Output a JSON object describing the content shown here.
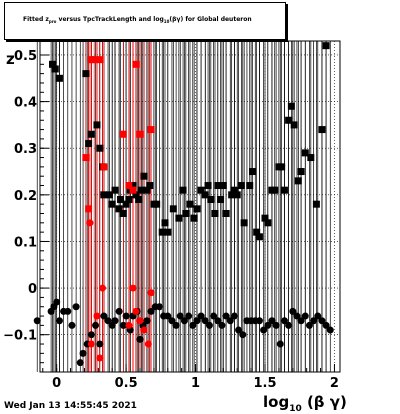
{
  "title": {
    "prefix": "Fitted  z",
    "sub1": "pro",
    "middle": "  versus TpcTrackLength and log",
    "sub2": "10",
    "suffix": "(βγ) for Global deuteron"
  },
  "axes": {
    "ylabel": "z",
    "xlabel_prefix": "log",
    "xlabel_sub": "10",
    "xlabel_suffix": "(β γ)"
  },
  "timestamp": "Wed Jan 13 14:55:45 2021",
  "chart_data": {
    "type": "scatter",
    "xlim": [
      -0.12,
      2.04
    ],
    "ylim": [
      -0.18,
      0.53
    ],
    "xticks": [
      {
        "v": 0,
        "label": "0"
      },
      {
        "v": 0.5,
        "label": "0.5"
      },
      {
        "v": 1,
        "label": "1"
      },
      {
        "v": 1.5,
        "label": "1.5"
      },
      {
        "v": 2,
        "label": "2"
      }
    ],
    "yticks": [
      {
        "v": -0.1,
        "label": "−0.1"
      },
      {
        "v": 0,
        "label": "0"
      },
      {
        "v": 0.1,
        "label": "0.1"
      },
      {
        "v": 0.2,
        "label": "0.2"
      },
      {
        "v": 0.3,
        "label": "0.3"
      },
      {
        "v": 0.4,
        "label": "0.4"
      },
      {
        "v": 0.5,
        "label": "0.5"
      }
    ],
    "grid": true,
    "series": [
      {
        "color": "#000000",
        "marker": "square",
        "points": [
          [
            -0.03,
            0.48
          ],
          [
            -0.01,
            0.47
          ],
          [
            0.02,
            0.45
          ],
          [
            0.21,
            0.46
          ],
          [
            0.23,
            0.31
          ],
          [
            0.25,
            0.33
          ],
          [
            0.29,
            0.35
          ],
          [
            0.31,
            0.3
          ],
          [
            0.33,
            0.26
          ],
          [
            0.34,
            0.2
          ],
          [
            0.38,
            0.2
          ],
          [
            0.4,
            0.18
          ],
          [
            0.42,
            0.21
          ],
          [
            0.45,
            0.17
          ],
          [
            0.46,
            0.19
          ],
          [
            0.48,
            0.16
          ],
          [
            0.5,
            0.18
          ],
          [
            0.52,
            0.19
          ],
          [
            0.53,
            0.21
          ],
          [
            0.55,
            0.22
          ],
          [
            0.57,
            0.2
          ],
          [
            0.59,
            0.19
          ],
          [
            0.61,
            0.21
          ],
          [
            0.63,
            0.24
          ],
          [
            0.65,
            0.21
          ],
          [
            0.67,
            0.22
          ],
          [
            0.7,
            0.18
          ],
          [
            0.72,
            0.18
          ],
          [
            0.76,
            0.12
          ],
          [
            0.78,
            0.14
          ],
          [
            0.8,
            0.12
          ],
          [
            0.84,
            0.17
          ],
          [
            0.88,
            0.15
          ],
          [
            0.91,
            0.21
          ],
          [
            0.93,
            0.16
          ],
          [
            0.96,
            0.18
          ],
          [
            0.99,
            0.15
          ],
          [
            1.01,
            0.17
          ],
          [
            1.04,
            0.21
          ],
          [
            1.07,
            0.2
          ],
          [
            1.09,
            0.22
          ],
          [
            1.11,
            0.19
          ],
          [
            1.14,
            0.16
          ],
          [
            1.16,
            0.22
          ],
          [
            1.18,
            0.19
          ],
          [
            1.2,
            0.22
          ],
          [
            1.22,
            0.16
          ],
          [
            1.26,
            0.2
          ],
          [
            1.28,
            0.21
          ],
          [
            1.3,
            0.2
          ],
          [
            1.33,
            0.22
          ],
          [
            1.35,
            0.14
          ],
          [
            1.39,
            0.22
          ],
          [
            1.41,
            0.25
          ],
          [
            1.44,
            0.12
          ],
          [
            1.46,
            0.11
          ],
          [
            1.5,
            0.15
          ],
          [
            1.52,
            0.14
          ],
          [
            1.55,
            0.21
          ],
          [
            1.57,
            0.21
          ],
          [
            1.6,
            0.26
          ],
          [
            1.62,
            0.26
          ],
          [
            1.64,
            0.21
          ],
          [
            1.67,
            0.36
          ],
          [
            1.69,
            0.39
          ],
          [
            1.71,
            0.35
          ],
          [
            1.74,
            0.23
          ],
          [
            1.76,
            0.25
          ],
          [
            1.79,
            0.29
          ],
          [
            1.83,
            0.28
          ],
          [
            1.87,
            0.18
          ],
          [
            1.91,
            0.34
          ],
          [
            1.94,
            0.52
          ]
        ]
      },
      {
        "color": "#000000",
        "marker": "circle",
        "points": [
          [
            -0.14,
            -0.07
          ],
          [
            -0.04,
            -0.05
          ],
          [
            -0.02,
            -0.04
          ],
          [
            0.0,
            -0.03
          ],
          [
            0.02,
            -0.07
          ],
          [
            0.05,
            -0.05
          ],
          [
            0.08,
            -0.05
          ],
          [
            0.11,
            -0.08
          ],
          [
            0.14,
            -0.04
          ],
          [
            0.17,
            -0.16
          ],
          [
            0.19,
            -0.14
          ],
          [
            0.22,
            -0.12
          ],
          [
            0.25,
            -0.1
          ],
          [
            0.28,
            -0.08
          ],
          [
            0.31,
            -0.12
          ],
          [
            0.34,
            -0.06
          ],
          [
            0.37,
            -0.07
          ],
          [
            0.4,
            -0.08
          ],
          [
            0.42,
            -0.07
          ],
          [
            0.45,
            -0.05
          ],
          [
            0.48,
            -0.08
          ],
          [
            0.5,
            -0.06
          ],
          [
            0.53,
            -0.09
          ],
          [
            0.55,
            -0.06
          ],
          [
            0.58,
            -0.05
          ],
          [
            0.6,
            -0.11
          ],
          [
            0.62,
            -0.08
          ],
          [
            0.65,
            -0.07
          ],
          [
            0.68,
            -0.05
          ],
          [
            0.71,
            -0.04
          ],
          [
            0.74,
            -0.04
          ],
          [
            0.77,
            -0.06
          ],
          [
            0.8,
            -0.06
          ],
          [
            0.83,
            -0.07
          ],
          [
            0.86,
            -0.08
          ],
          [
            0.89,
            -0.06
          ],
          [
            0.92,
            -0.07
          ],
          [
            0.95,
            -0.06
          ],
          [
            0.98,
            -0.08
          ],
          [
            1.01,
            -0.07
          ],
          [
            1.04,
            -0.06
          ],
          [
            1.07,
            -0.07
          ],
          [
            1.1,
            -0.08
          ],
          [
            1.13,
            -0.06
          ],
          [
            1.16,
            -0.07
          ],
          [
            1.19,
            -0.08
          ],
          [
            1.22,
            -0.06
          ],
          [
            1.25,
            -0.07
          ],
          [
            1.28,
            -0.06
          ],
          [
            1.31,
            -0.09
          ],
          [
            1.34,
            -0.1
          ],
          [
            1.37,
            -0.07
          ],
          [
            1.4,
            -0.07
          ],
          [
            1.43,
            -0.07
          ],
          [
            1.46,
            -0.07
          ],
          [
            1.49,
            -0.09
          ],
          [
            1.52,
            -0.08
          ],
          [
            1.55,
            -0.07
          ],
          [
            1.58,
            -0.08
          ],
          [
            1.61,
            -0.12
          ],
          [
            1.64,
            -0.07
          ],
          [
            1.67,
            -0.08
          ],
          [
            1.7,
            -0.05
          ],
          [
            1.73,
            -0.06
          ],
          [
            1.76,
            -0.07
          ],
          [
            1.79,
            -0.06
          ],
          [
            1.82,
            -0.08
          ],
          [
            1.85,
            -0.07
          ],
          [
            1.88,
            -0.06
          ],
          [
            1.91,
            -0.07
          ],
          [
            1.94,
            -0.08
          ],
          [
            1.97,
            -0.09
          ]
        ]
      },
      {
        "color": "#ff0000",
        "marker": "square",
        "points": [
          [
            0.21,
            0.28
          ],
          [
            0.23,
            0.17
          ],
          [
            0.25,
            0.49
          ],
          [
            0.27,
            0.49
          ],
          [
            0.31,
            0.49
          ],
          [
            0.34,
            0.26
          ],
          [
            0.48,
            0.33
          ],
          [
            0.52,
            0.22
          ],
          [
            0.55,
            0.21
          ],
          [
            0.57,
            0.48
          ],
          [
            0.6,
            0.33
          ],
          [
            0.68,
            0.34
          ]
        ]
      },
      {
        "color": "#ff0000",
        "marker": "circle",
        "points": [
          [
            0.24,
            0.14
          ],
          [
            0.25,
            -0.12
          ],
          [
            0.29,
            -0.06
          ],
          [
            0.31,
            -0.15
          ],
          [
            0.33,
            0.0
          ],
          [
            0.52,
            -0.08
          ],
          [
            0.55,
            0.0
          ],
          [
            0.57,
            -0.05
          ],
          [
            0.6,
            -0.07
          ],
          [
            0.63,
            -0.09
          ],
          [
            0.66,
            -0.12
          ],
          [
            0.68,
            -0.01
          ]
        ]
      }
    ]
  }
}
